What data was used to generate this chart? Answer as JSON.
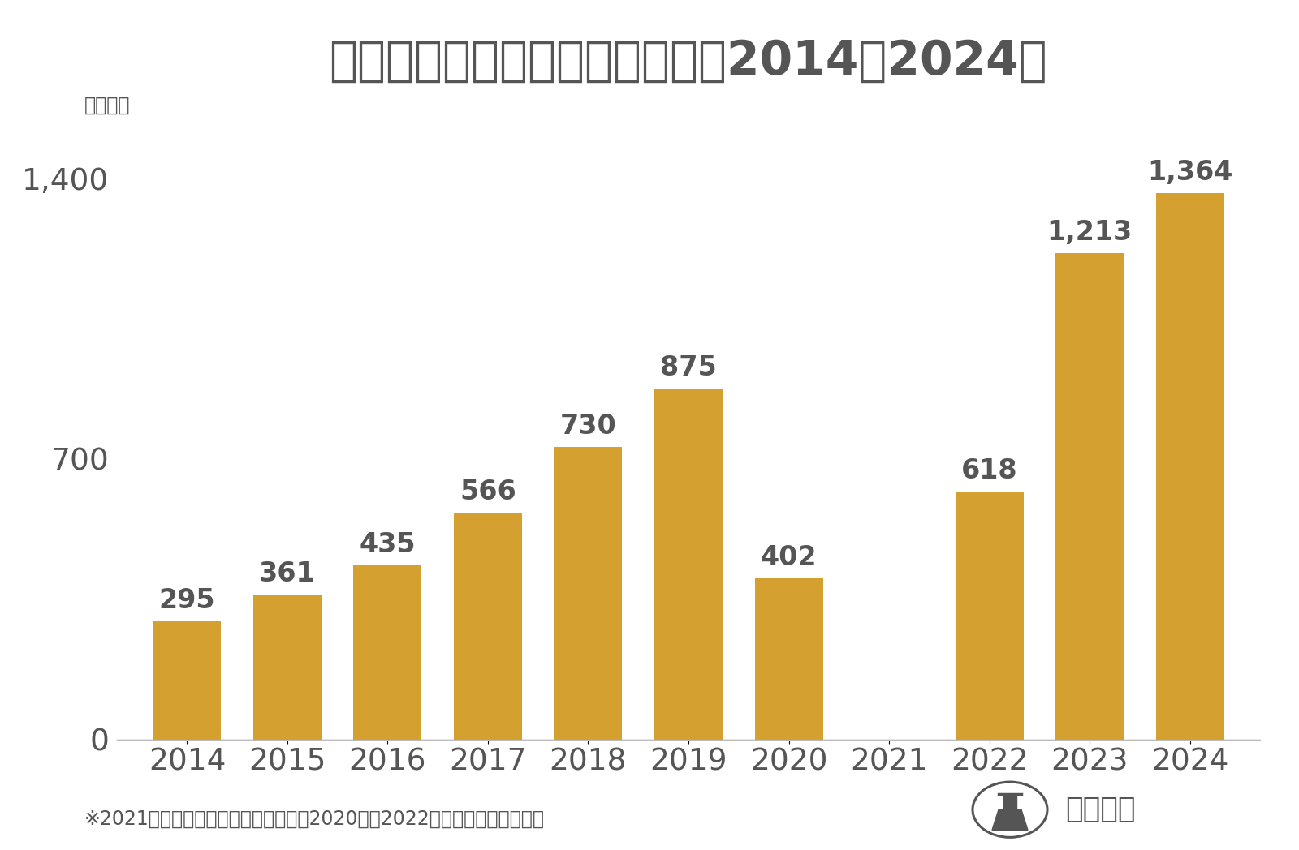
{
  "title": "訪日ベトナム人消費額の推移（2014〜2024）",
  "ylabel": "（億円）",
  "years": [
    2014,
    2015,
    2016,
    2017,
    2018,
    2019,
    2020,
    2021,
    2022,
    2023,
    2024
  ],
  "values": [
    295,
    361,
    435,
    566,
    730,
    875,
    402,
    0,
    618,
    1213,
    1364
  ],
  "bar_color": "#D4A030",
  "yticks": [
    0,
    700,
    1400
  ],
  "ylim": [
    0,
    1580
  ],
  "background_color": "#ffffff",
  "title_fontsize": 42,
  "tick_fontsize": 27,
  "bar_label_fontsize": 24,
  "ylabel_fontsize": 17,
  "footnote": "※2021年は国別消費額のデータなし。2020年、2022年は観光庁の試算値。",
  "footnote_fontsize": 17,
  "text_color": "#555555",
  "logo_text": "訪日ラボ"
}
